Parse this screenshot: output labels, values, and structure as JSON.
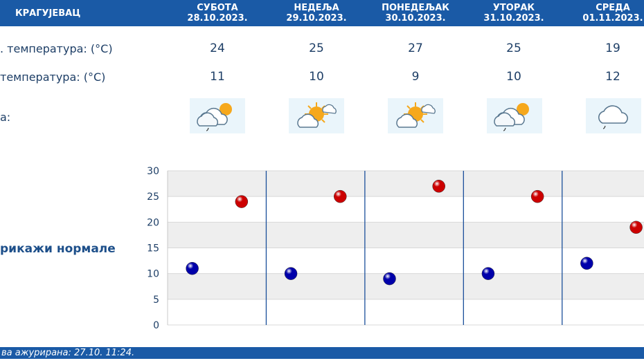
{
  "header": {
    "city": "КРАГУЈЕВАЦ",
    "days": [
      {
        "name": "СУБОТА",
        "date": "28.10.2023."
      },
      {
        "name": "НЕДЕЉА",
        "date": "29.10.2023."
      },
      {
        "name": "ПОНЕДЕЉАК",
        "date": "30.10.2023."
      },
      {
        "name": "УТОРАК",
        "date": "31.10.2023."
      },
      {
        "name": "СРЕДА",
        "date": "01.11.2023."
      }
    ]
  },
  "rows": {
    "max_label": ". температура: (°C)",
    "min_label": "температура: (°C)",
    "weather_label": "а:",
    "max_values": [
      "24",
      "25",
      "27",
      "25",
      "19"
    ],
    "min_values": [
      "11",
      "10",
      "9",
      "10",
      "12"
    ],
    "icons": [
      "partly-cloudy-rain-icon",
      "sun-cloud-icon",
      "sun-cloud-icon",
      "partly-cloudy-rain-icon",
      "cloud-rain-icon"
    ]
  },
  "normals_label": "рикажи нормале",
  "footer": {
    "updated": "ва ажурирана:  27.10. 11:24."
  },
  "colors": {
    "header": "#1a5aa6",
    "max_dot": "#cc0000",
    "min_dot": "#0000aa"
  },
  "chart_data": {
    "type": "scatter",
    "categories": [
      "СУБОТА",
      "НЕДЕЉА",
      "ПОНЕДЕЉАК",
      "УТОРАК",
      "СРЕДА"
    ],
    "series": [
      {
        "values": [
          11,
          10,
          9,
          10,
          12
        ],
        "color": "#0000aa"
      },
      {
        "values": [
          24,
          25,
          27,
          25,
          19
        ],
        "color": "#cc0000"
      }
    ],
    "y_ticks": [
      "0",
      "5",
      "10",
      "15",
      "20",
      "25",
      "30"
    ],
    "ylim": [
      0,
      30
    ],
    "grid": true
  }
}
